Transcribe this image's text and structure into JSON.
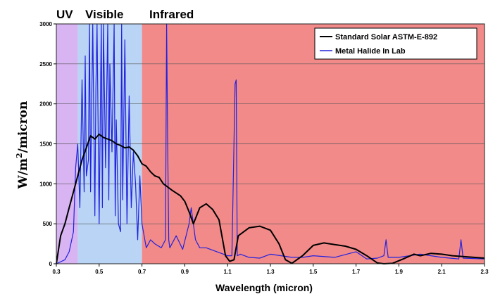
{
  "chart_data": {
    "type": "line",
    "title": "",
    "xlabel": "Wavelength (micron)",
    "ylabel": "W/m²/micron",
    "ylabel_main": "W/m",
    "ylabel_sup": "2",
    "ylabel_tail": "/micron",
    "xlim": [
      0.3,
      2.3
    ],
    "ylim": [
      0,
      3000
    ],
    "x_ticks": [
      0.3,
      0.5,
      0.7,
      0.9,
      1.1,
      1.3,
      1.5,
      1.7,
      1.9,
      2.1,
      2.3
    ],
    "x_tick_labels": [
      "0.3",
      "0.5",
      "0.7",
      "0.9",
      "1.1",
      "1.3",
      "1.5",
      "1.7",
      "1.9",
      "2.1",
      "2.3"
    ],
    "y_ticks": [
      0,
      500,
      1000,
      1500,
      2000,
      2500,
      3000
    ],
    "y_tick_labels": [
      "0",
      "500",
      "1000",
      "1500",
      "2000",
      "2500",
      "3000"
    ],
    "grid": "horizontal",
    "legend_position": "top-right",
    "regions": [
      {
        "label": "UV",
        "from": 0.3,
        "to": 0.4,
        "color": "#d8b4f2"
      },
      {
        "label": "Visible",
        "from": 0.4,
        "to": 0.7,
        "color": "#b9d4f4"
      },
      {
        "label": "Infrared",
        "from": 0.7,
        "to": 2.3,
        "color": "#f28a8a"
      }
    ],
    "series": [
      {
        "name": "Standard Solar ASTM-E-892",
        "color": "#000000",
        "x": [
          0.3,
          0.32,
          0.34,
          0.36,
          0.38,
          0.4,
          0.42,
          0.44,
          0.46,
          0.48,
          0.5,
          0.52,
          0.54,
          0.56,
          0.58,
          0.6,
          0.62,
          0.64,
          0.66,
          0.68,
          0.7,
          0.72,
          0.74,
          0.76,
          0.78,
          0.8,
          0.84,
          0.88,
          0.9,
          0.92,
          0.94,
          0.97,
          1.0,
          1.03,
          1.06,
          1.09,
          1.11,
          1.13,
          1.15,
          1.2,
          1.25,
          1.3,
          1.34,
          1.37,
          1.4,
          1.45,
          1.5,
          1.55,
          1.6,
          1.65,
          1.7,
          1.75,
          1.8,
          1.83,
          1.87,
          1.92,
          1.97,
          2.0,
          2.05,
          2.1,
          2.15,
          2.2,
          2.3
        ],
        "values": [
          0,
          350,
          500,
          700,
          900,
          1100,
          1300,
          1450,
          1600,
          1560,
          1620,
          1580,
          1560,
          1540,
          1500,
          1480,
          1450,
          1460,
          1420,
          1350,
          1250,
          1220,
          1150,
          1100,
          1080,
          1000,
          920,
          850,
          780,
          650,
          500,
          700,
          750,
          680,
          550,
          100,
          30,
          50,
          350,
          450,
          470,
          420,
          250,
          50,
          5,
          100,
          230,
          260,
          240,
          220,
          180,
          100,
          10,
          0,
          5,
          60,
          120,
          100,
          130,
          120,
          100,
          90,
          70
        ]
      },
      {
        "name": "Metal Halide In Lab",
        "color": "#2222dd",
        "x": [
          0.3,
          0.34,
          0.36,
          0.38,
          0.39,
          0.4,
          0.41,
          0.42,
          0.43,
          0.435,
          0.44,
          0.45,
          0.455,
          0.46,
          0.47,
          0.48,
          0.485,
          0.49,
          0.5,
          0.51,
          0.515,
          0.52,
          0.53,
          0.54,
          0.545,
          0.55,
          0.56,
          0.57,
          0.575,
          0.58,
          0.59,
          0.6,
          0.605,
          0.61,
          0.62,
          0.63,
          0.64,
          0.65,
          0.66,
          0.67,
          0.68,
          0.69,
          0.7,
          0.72,
          0.74,
          0.76,
          0.79,
          0.81,
          0.815,
          0.82,
          0.825,
          0.83,
          0.86,
          0.89,
          0.92,
          0.93,
          0.95,
          0.97,
          1.0,
          1.05,
          1.1,
          1.12,
          1.135,
          1.14,
          1.145,
          1.16,
          1.2,
          1.25,
          1.3,
          1.35,
          1.4,
          1.45,
          1.5,
          1.6,
          1.7,
          1.75,
          1.8,
          1.83,
          1.84,
          1.85,
          1.9,
          2.0,
          2.1,
          2.18,
          2.19,
          2.2,
          2.3
        ],
        "values": [
          0,
          50,
          150,
          400,
          1200,
          1500,
          700,
          2300,
          900,
          2600,
          1100,
          1300,
          3000,
          900,
          3000,
          600,
          2200,
          3000,
          500,
          3000,
          700,
          3000,
          1200,
          3000,
          800,
          2500,
          1400,
          3000,
          600,
          1800,
          500,
          400,
          3000,
          800,
          2800,
          500,
          2100,
          700,
          1400,
          1000,
          300,
          1100,
          500,
          200,
          300,
          250,
          200,
          300,
          3000,
          1500,
          300,
          200,
          350,
          180,
          500,
          700,
          300,
          200,
          200,
          150,
          100,
          100,
          2250,
          2300,
          100,
          120,
          80,
          70,
          120,
          100,
          80,
          80,
          100,
          80,
          150,
          60,
          70,
          100,
          300,
          80,
          80,
          120,
          80,
          60,
          300,
          70,
          60
        ]
      }
    ]
  }
}
